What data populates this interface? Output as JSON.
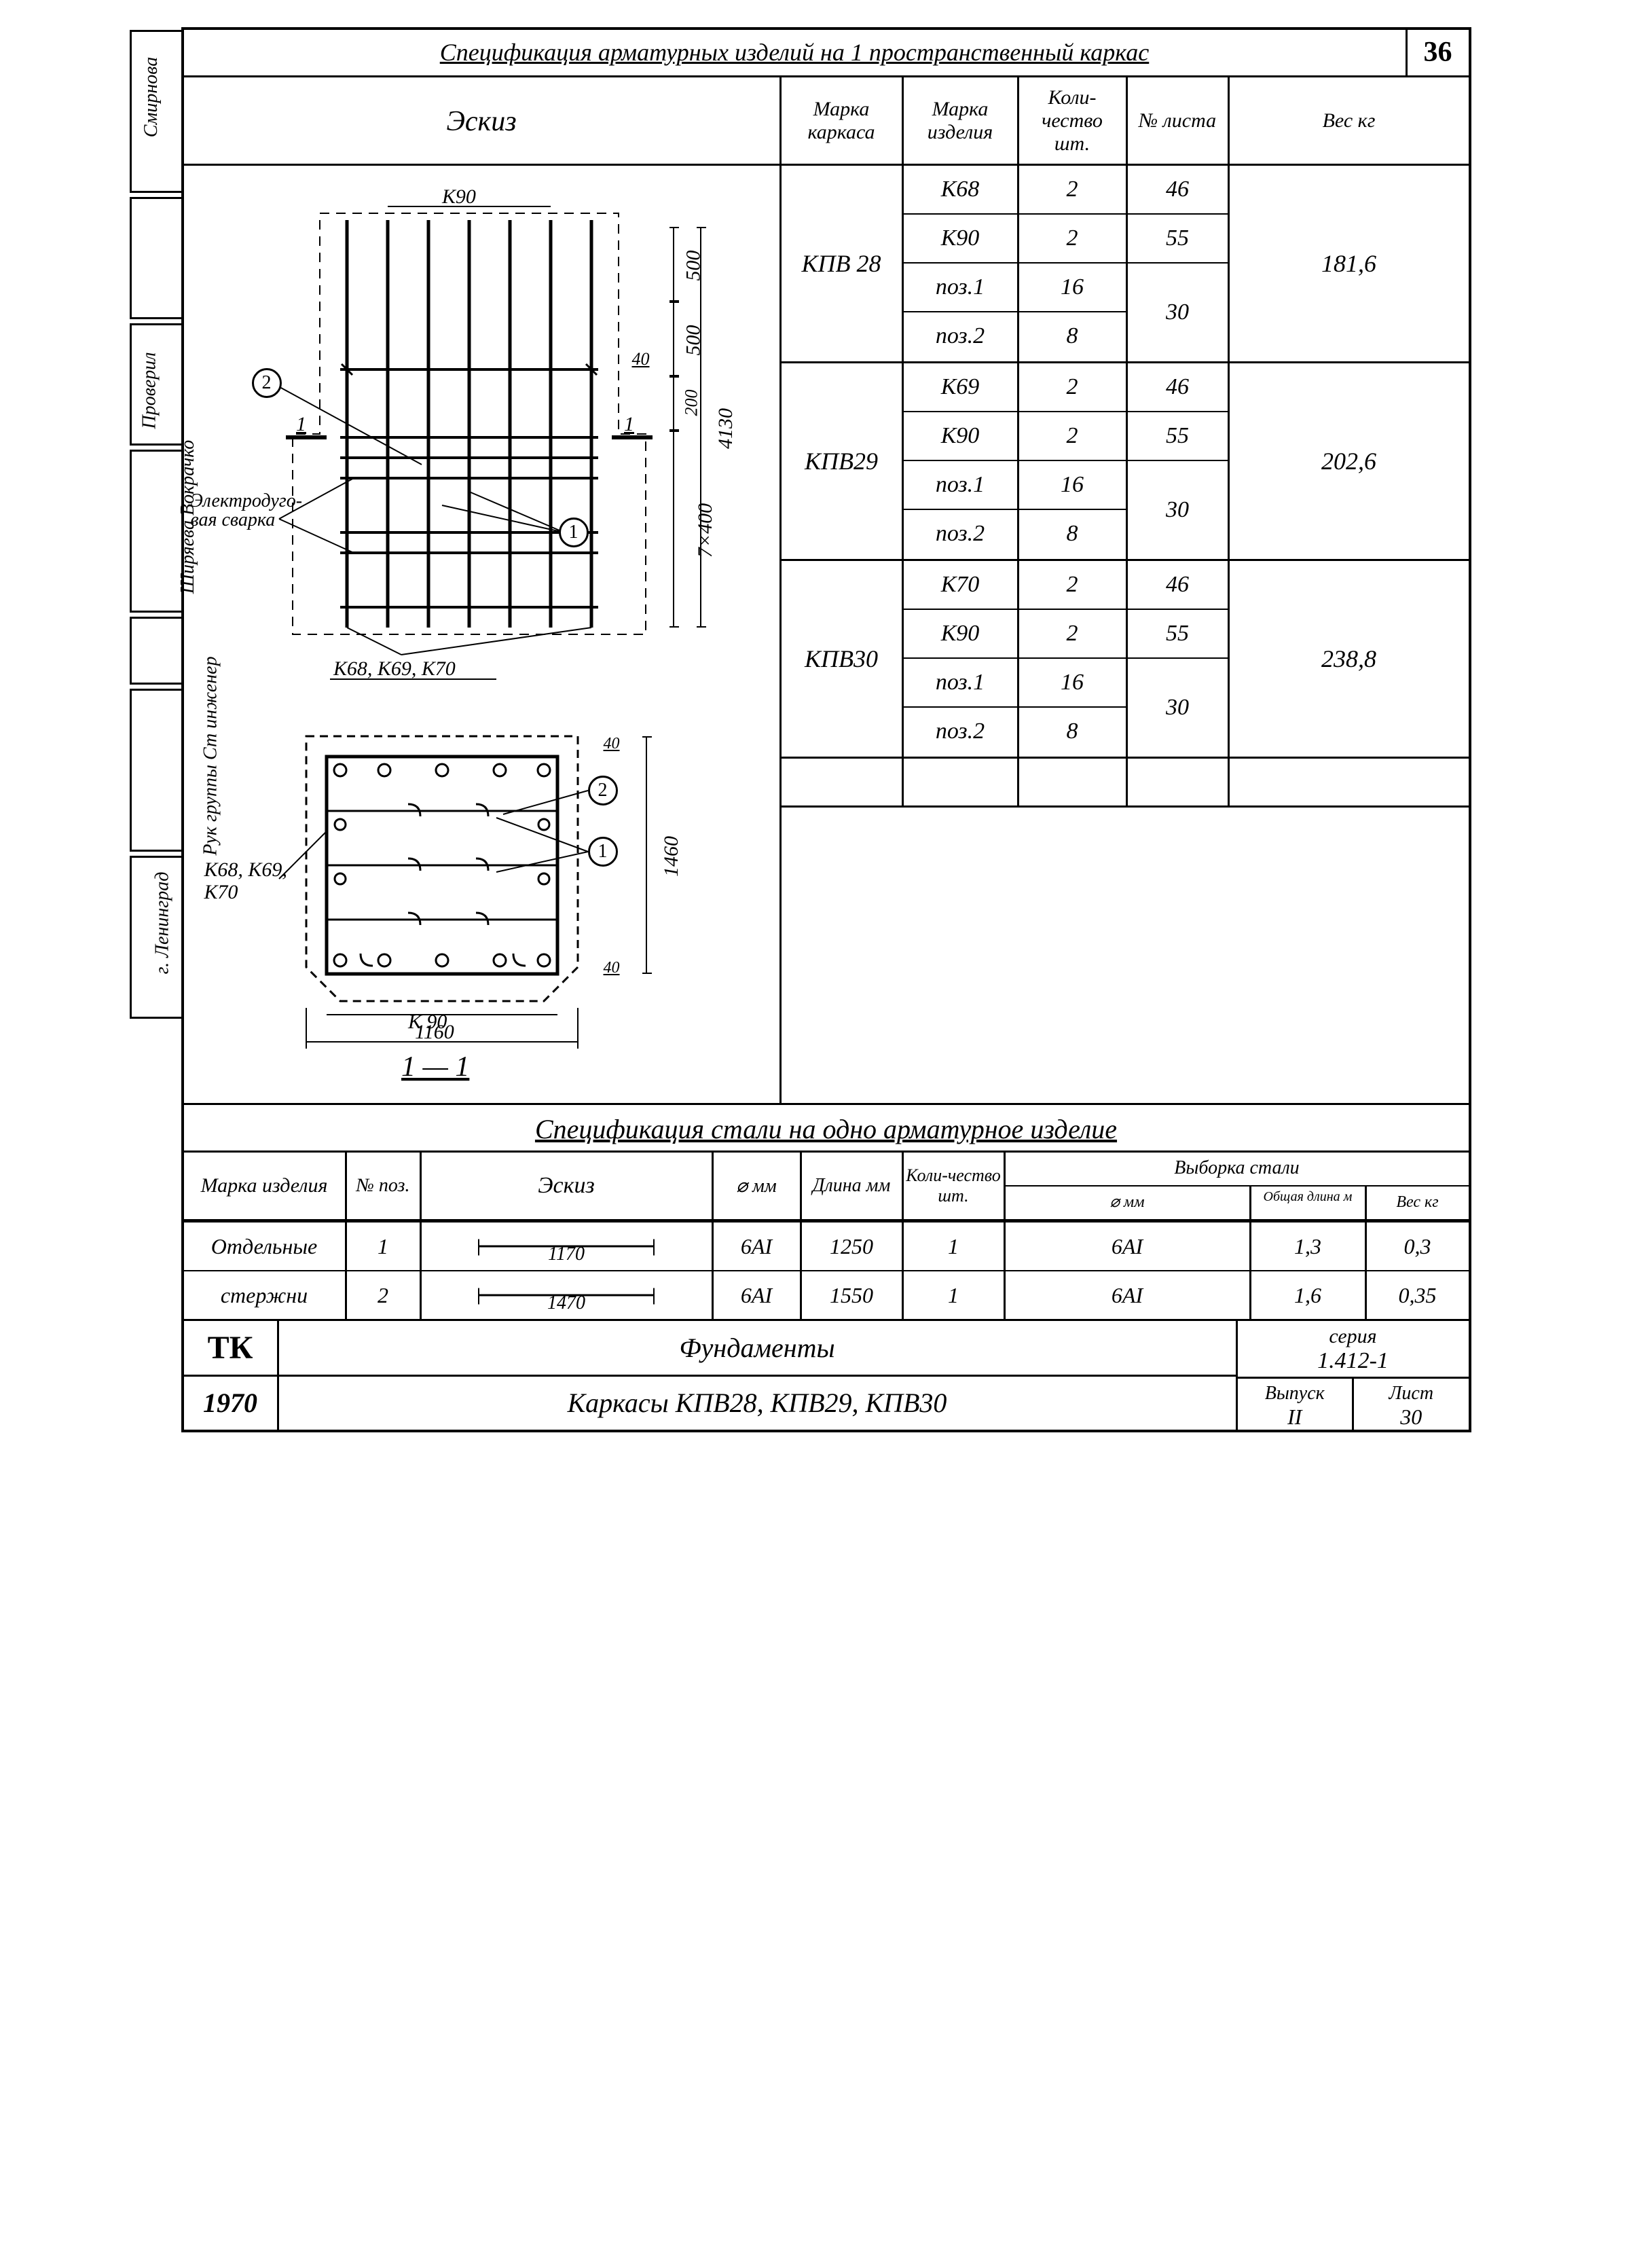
{
  "page_number": "36",
  "header_title": "Спецификация арматурных изделий на 1 пространственный каркас",
  "sketch_label": "Эскиз",
  "spec_columns": {
    "marka_karkasa": "Марка каркаса",
    "marka_izdelia": "Марка изделия",
    "kolichestvo": "Коли-чество шт.",
    "list": "№ листа",
    "ves": "Вес кг"
  },
  "spec_groups": [
    {
      "marka": "КПВ 28",
      "ves": "181,6",
      "rows": [
        {
          "izd": "К68",
          "qty": "2",
          "list": "46"
        },
        {
          "izd": "К90",
          "qty": "2",
          "list": "55"
        },
        {
          "izd": "поз.1",
          "qty": "16",
          "list_merge": "30"
        },
        {
          "izd": "поз.2",
          "qty": "8"
        }
      ]
    },
    {
      "marka": "КПВ29",
      "ves": "202,6",
      "rows": [
        {
          "izd": "К69",
          "qty": "2",
          "list": "46"
        },
        {
          "izd": "К90",
          "qty": "2",
          "list": "55"
        },
        {
          "izd": "поз.1",
          "qty": "16",
          "list_merge": "30"
        },
        {
          "izd": "поз.2",
          "qty": "8"
        }
      ]
    },
    {
      "marka": "КПВ30",
      "ves": "238,8",
      "rows": [
        {
          "izd": "К70",
          "qty": "2",
          "list": "46"
        },
        {
          "izd": "К90",
          "qty": "2",
          "list": "55"
        },
        {
          "izd": "поз.1",
          "qty": "16",
          "list_merge": "30"
        },
        {
          "izd": "поз.2",
          "qty": "8"
        }
      ]
    }
  ],
  "sketch": {
    "top_label": "К90",
    "side_label": "К68, К69, К70",
    "weld_note": "Электродуго-вая сварка",
    "section_label": "1 — 1",
    "bottom_label_k": "К 90",
    "bottom_label_k68": "К68, К69, К70",
    "dims": {
      "overall": "4130",
      "d500a": "500",
      "d500b": "500",
      "d200": "200",
      "d40": "40",
      "d7x400": "7×400",
      "sect_w": "1160",
      "sect_h": "1460",
      "sect_40a": "40",
      "sect_40b": "40"
    },
    "bubble1": "1",
    "bubble2": "2",
    "cut": "1"
  },
  "subtitle": "Спецификация стали на одно арматурное изделие",
  "steel_columns": {
    "marka": "Марка изделия",
    "poz": "№ поз.",
    "eskiz": "Эскиз",
    "diam": "⌀ мм",
    "dlina": "Длина мм",
    "qty": "Коли-чество шт.",
    "vyborka": "Выборка стали",
    "diam2": "⌀ мм",
    "total_len": "Общая длина м",
    "ves": "Вес кг"
  },
  "steel_rows": [
    {
      "marka": "Отдельные",
      "poz": "1",
      "sk_dim": "1170",
      "diam": "6АI",
      "dlina": "1250",
      "qty": "1",
      "diam2": "6АI",
      "len": "1,3",
      "ves": "0,3"
    },
    {
      "marka": "стержни",
      "poz": "2",
      "sk_dim": "1470",
      "diam": "6АI",
      "dlina": "1550",
      "qty": "1",
      "diam2": "6АI",
      "len": "1,6",
      "ves": "0,35"
    }
  ],
  "title_block": {
    "tk": "ТК",
    "year": "1970",
    "line1": "Фундаменты",
    "line2": "Каркасы   КПВ28, КПВ29, КПВ30",
    "seria_lbl": "серия",
    "seria": "1.412-1",
    "vypusk_lbl": "Выпуск",
    "vypusk": "II",
    "list_lbl": "Лист",
    "list": "30"
  },
  "left_stubs": [
    "Смирнова",
    "",
    "Проверил",
    "Ширяева Вокрачко",
    "",
    "Рук группы Ст инженер",
    "г. Ленинград"
  ]
}
